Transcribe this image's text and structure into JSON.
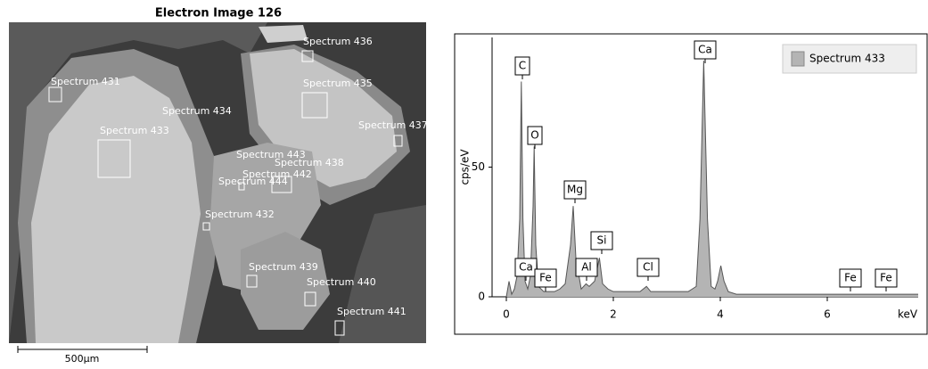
{
  "image": {
    "title": "Electron Image 126",
    "scale_bar": "500µm",
    "labels": [
      "Spectrum 431",
      "Spectrum 436",
      "Spectrum 435",
      "Spectrum 434",
      "Spectrum 437",
      "Spectrum 433",
      "Spectrum 443",
      "Spectrum 438",
      "Spectrum 442",
      "Spectrum 444",
      "Spectrum 432",
      "Spectrum 439",
      "Spectrum 440",
      "Spectrum 441"
    ]
  },
  "chart_data": {
    "type": "area",
    "x_label": "keV",
    "y_label": "cps/eV",
    "x": [
      0,
      0.05,
      0.1,
      0.15,
      0.2,
      0.25,
      0.28,
      0.31,
      0.35,
      0.4,
      0.45,
      0.5,
      0.52,
      0.55,
      0.6,
      0.7,
      0.8,
      0.9,
      1.0,
      1.1,
      1.2,
      1.25,
      1.3,
      1.4,
      1.49,
      1.55,
      1.65,
      1.74,
      1.8,
      1.9,
      2.0,
      2.5,
      2.62,
      2.7,
      3.0,
      3.4,
      3.55,
      3.62,
      3.69,
      3.76,
      3.83,
      3.9,
      3.95,
      4.01,
      4.07,
      4.15,
      4.3,
      5,
      6,
      7,
      7.7
    ],
    "series": [
      {
        "name": "Spectrum 433",
        "color": "#b4b4b4",
        "values": [
          0,
          6,
          1,
          3,
          8,
          30,
          83,
          30,
          6,
          3,
          8,
          35,
          58,
          20,
          4,
          2,
          2,
          2,
          3,
          5,
          20,
          35,
          15,
          3,
          5,
          4,
          6,
          15,
          5,
          3,
          2,
          2,
          4,
          2,
          2,
          2,
          4,
          30,
          91,
          30,
          4,
          3,
          6,
          12,
          6,
          2,
          1,
          1,
          1,
          1,
          1
        ]
      }
    ],
    "peak_labels": [
      "C",
      "O",
      "Mg",
      "Si",
      "Ca",
      "Ca",
      "Fe",
      "Al",
      "Cl",
      "Fe",
      "Fe"
    ],
    "xlim": [
      0,
      7.7
    ],
    "ylim": [
      0,
      100
    ],
    "xticks": [
      0,
      2,
      4,
      6
    ],
    "yticks": [
      0,
      50
    ],
    "legend": "top-right"
  }
}
